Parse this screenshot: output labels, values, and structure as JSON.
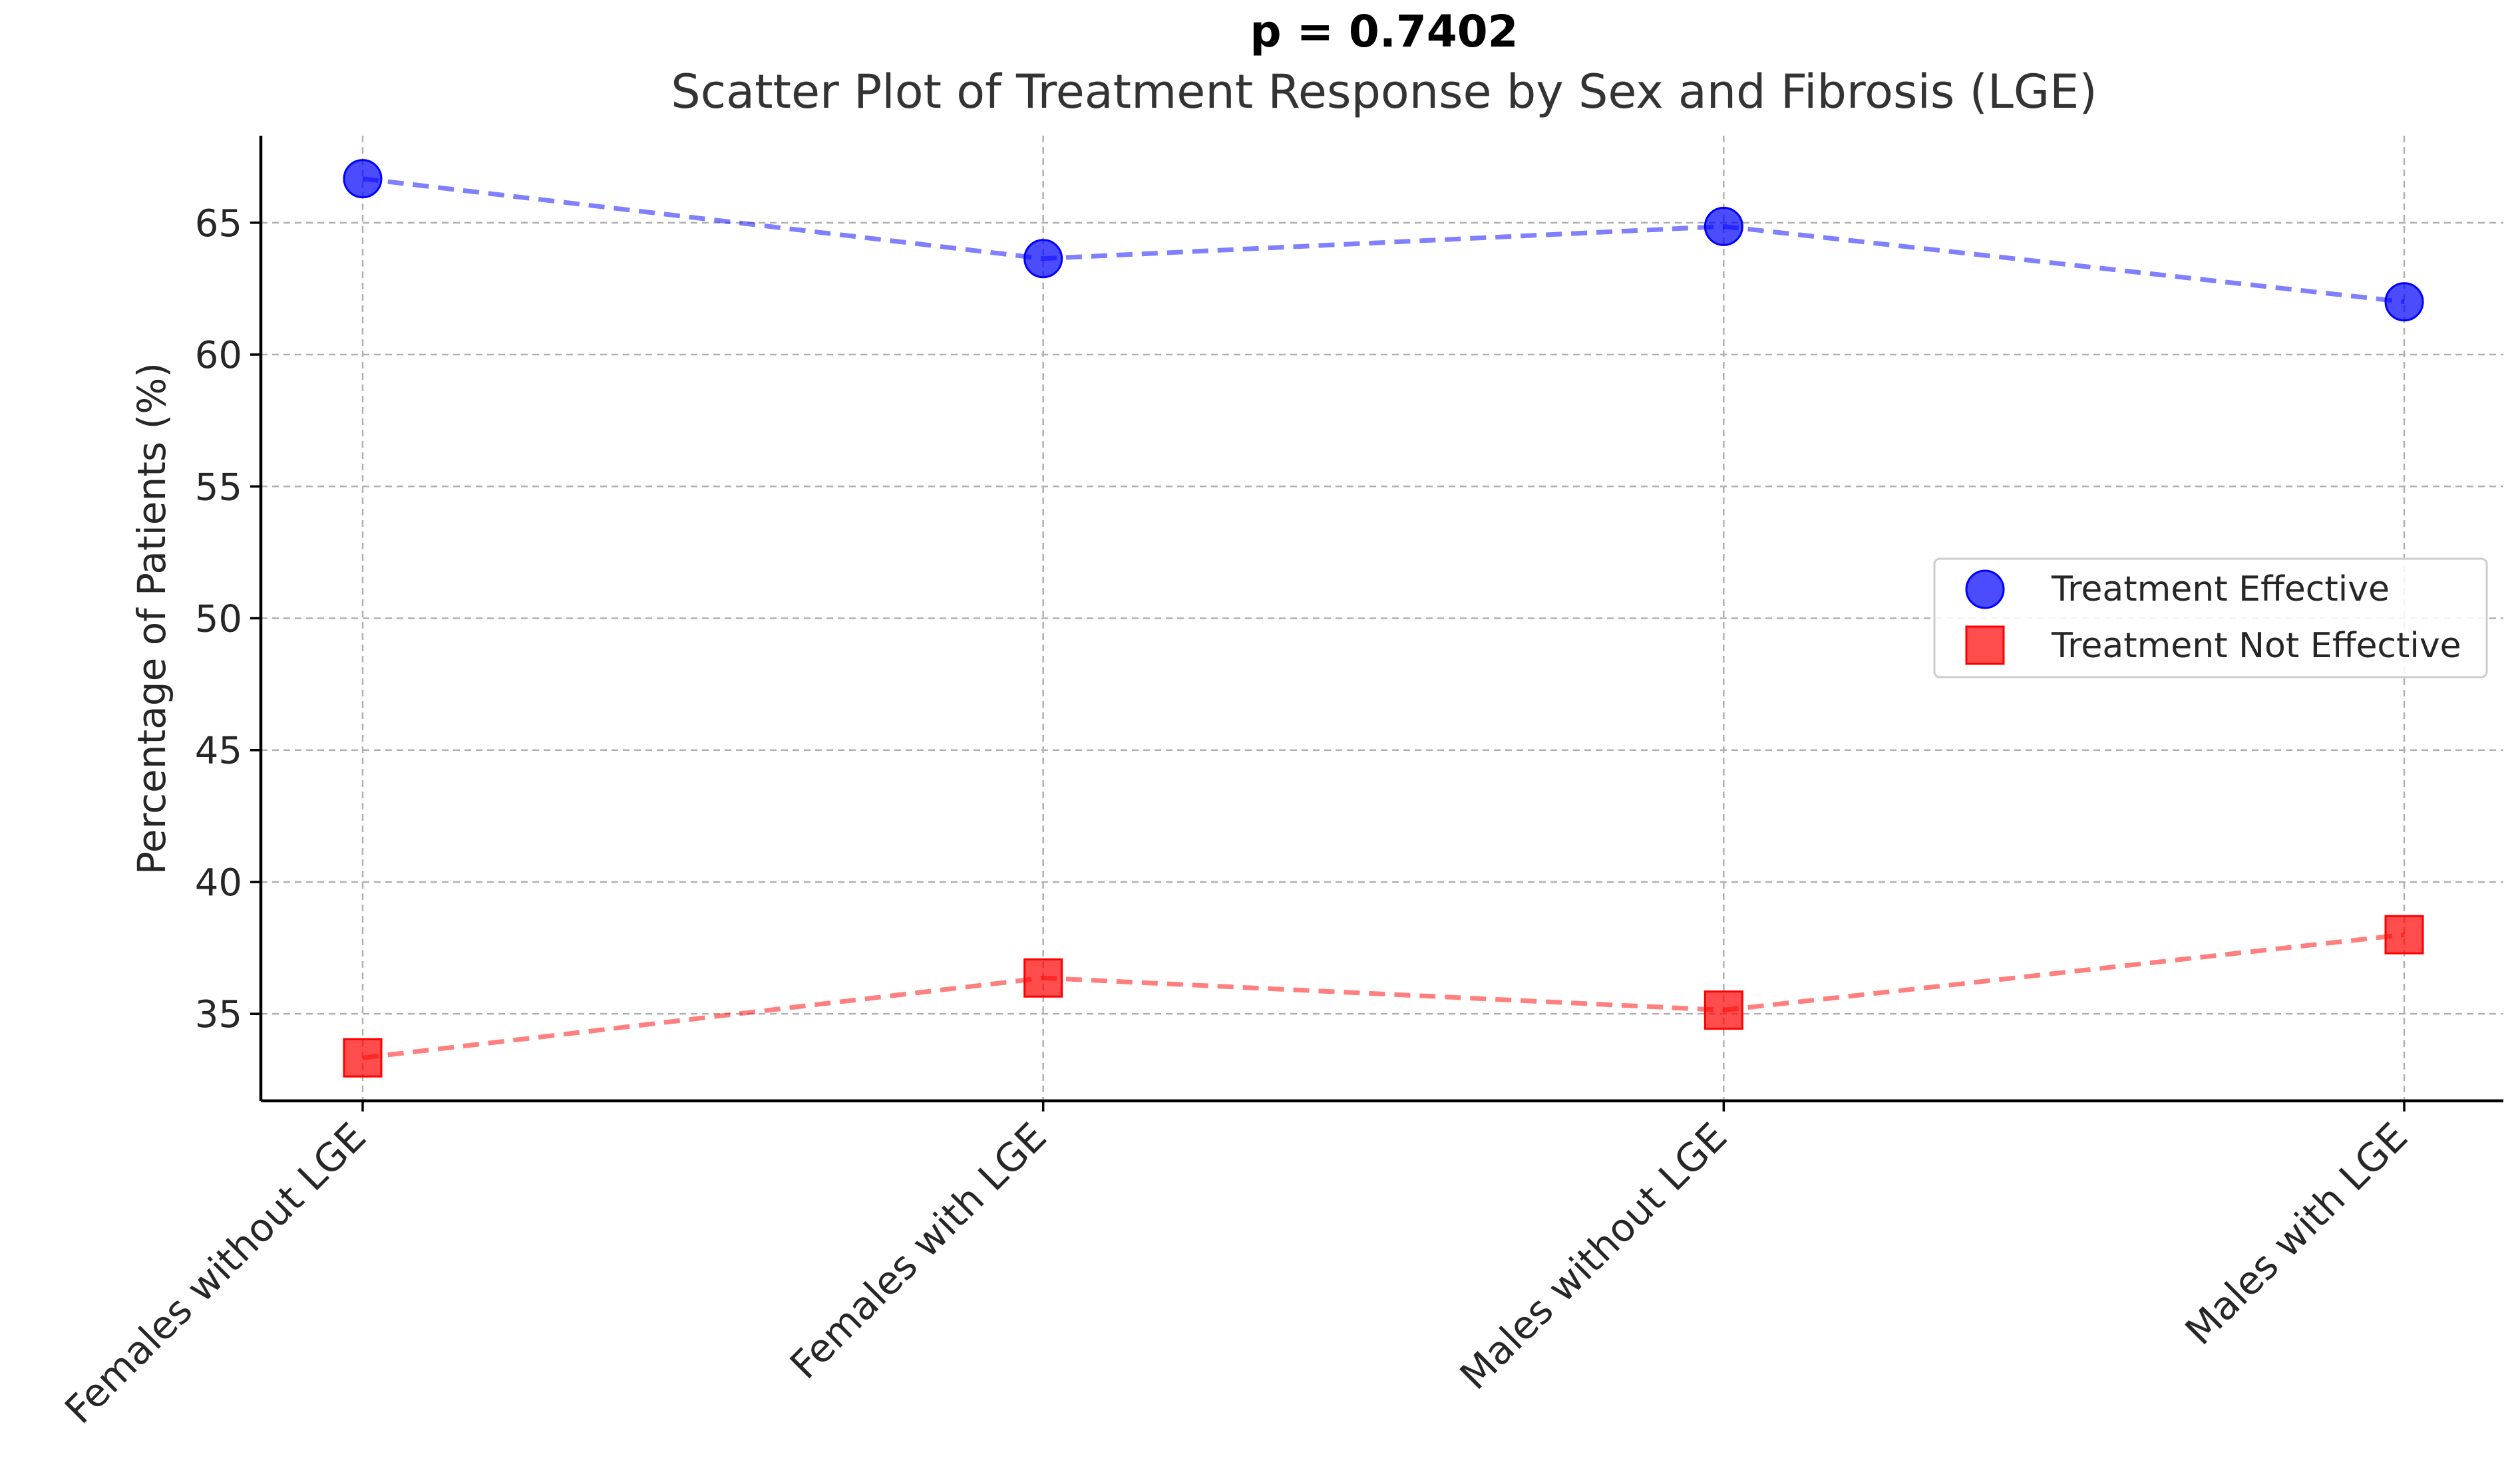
{
  "chart_data": {
    "type": "scatter",
    "suptitle": "p = 0.7402",
    "title": "Scatter Plot of Treatment Response by Sex and Fibrosis (LGE)",
    "xlabel": "",
    "ylabel": "Percentage of Patients (%)",
    "categories": [
      "Females without LGE",
      "Females with LGE",
      "Males without LGE",
      "Males with LGE"
    ],
    "ylim": [
      31.7,
      68.3
    ],
    "yticks": [
      "35",
      "40",
      "45",
      "50",
      "55",
      "60",
      "65"
    ],
    "grid": true,
    "legend_position": "center-right",
    "series": [
      {
        "name": "Treatment Effective",
        "values": [
          66.67,
          63.64,
          64.86,
          62.0
        ],
        "color": "#0000ff",
        "marker": "circle",
        "line": "dashed"
      },
      {
        "name": "Treatment Not Effective",
        "values": [
          33.33,
          36.36,
          35.14,
          38.0
        ],
        "color": "#ff0000",
        "marker": "square",
        "line": "dashed"
      }
    ]
  }
}
